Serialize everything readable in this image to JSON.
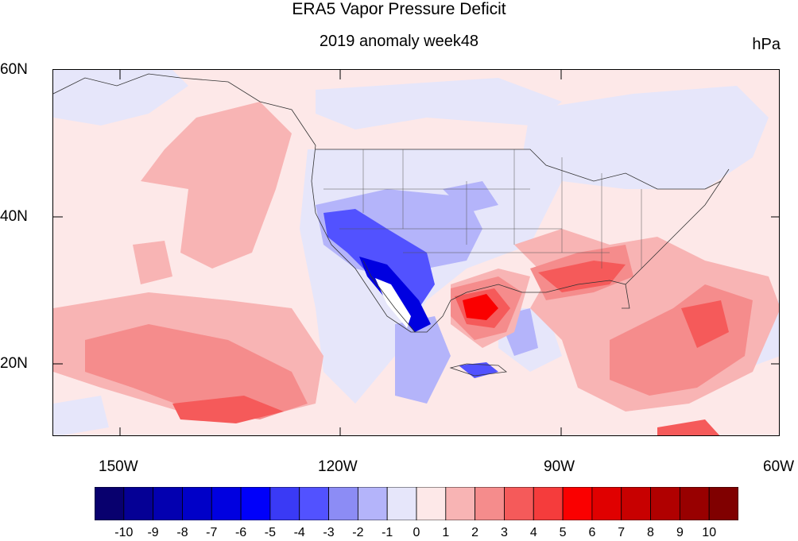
{
  "title": "ERA5 Vapor Pressure Deficit",
  "subtitle": "2019 anomaly week48",
  "units": "hPa",
  "lat_labels": [
    "60N",
    "40N",
    "20N"
  ],
  "lon_labels": [
    "150W",
    "120W",
    "90W",
    "60W"
  ],
  "colorbar": {
    "labels": [
      "-10",
      "-9",
      "-8",
      "-7",
      "-6",
      "-5",
      "-4",
      "-3",
      "-2",
      "-1",
      "0",
      "1",
      "2",
      "3",
      "4",
      "5",
      "6",
      "7",
      "8",
      "9",
      "10"
    ],
    "colors": [
      "#08006e",
      "#050095",
      "#0300b0",
      "#0000c8",
      "#0000e0",
      "#0000fa",
      "#3a3af5",
      "#5252ff",
      "#8c8cf5",
      "#b4b4fa",
      "#e6e6fa",
      "#fde8e8",
      "#f8b4b4",
      "#f58c8c",
      "#f55a5a",
      "#f53c3c",
      "#fa0000",
      "#e00000",
      "#c80000",
      "#b00000",
      "#980000",
      "#800000"
    ]
  },
  "colors": {
    "ocean_base": "#fde8e8",
    "neg_light": "#e6e6fa",
    "neg_mid": "#b4b4fa",
    "neg_strong": "#5252ff",
    "neg_deep": "#0000e0",
    "pos_light": "#f8b4b4",
    "pos_mid": "#f58c8c",
    "pos_strong": "#f55a5a",
    "pos_deep": "#fa0000"
  }
}
